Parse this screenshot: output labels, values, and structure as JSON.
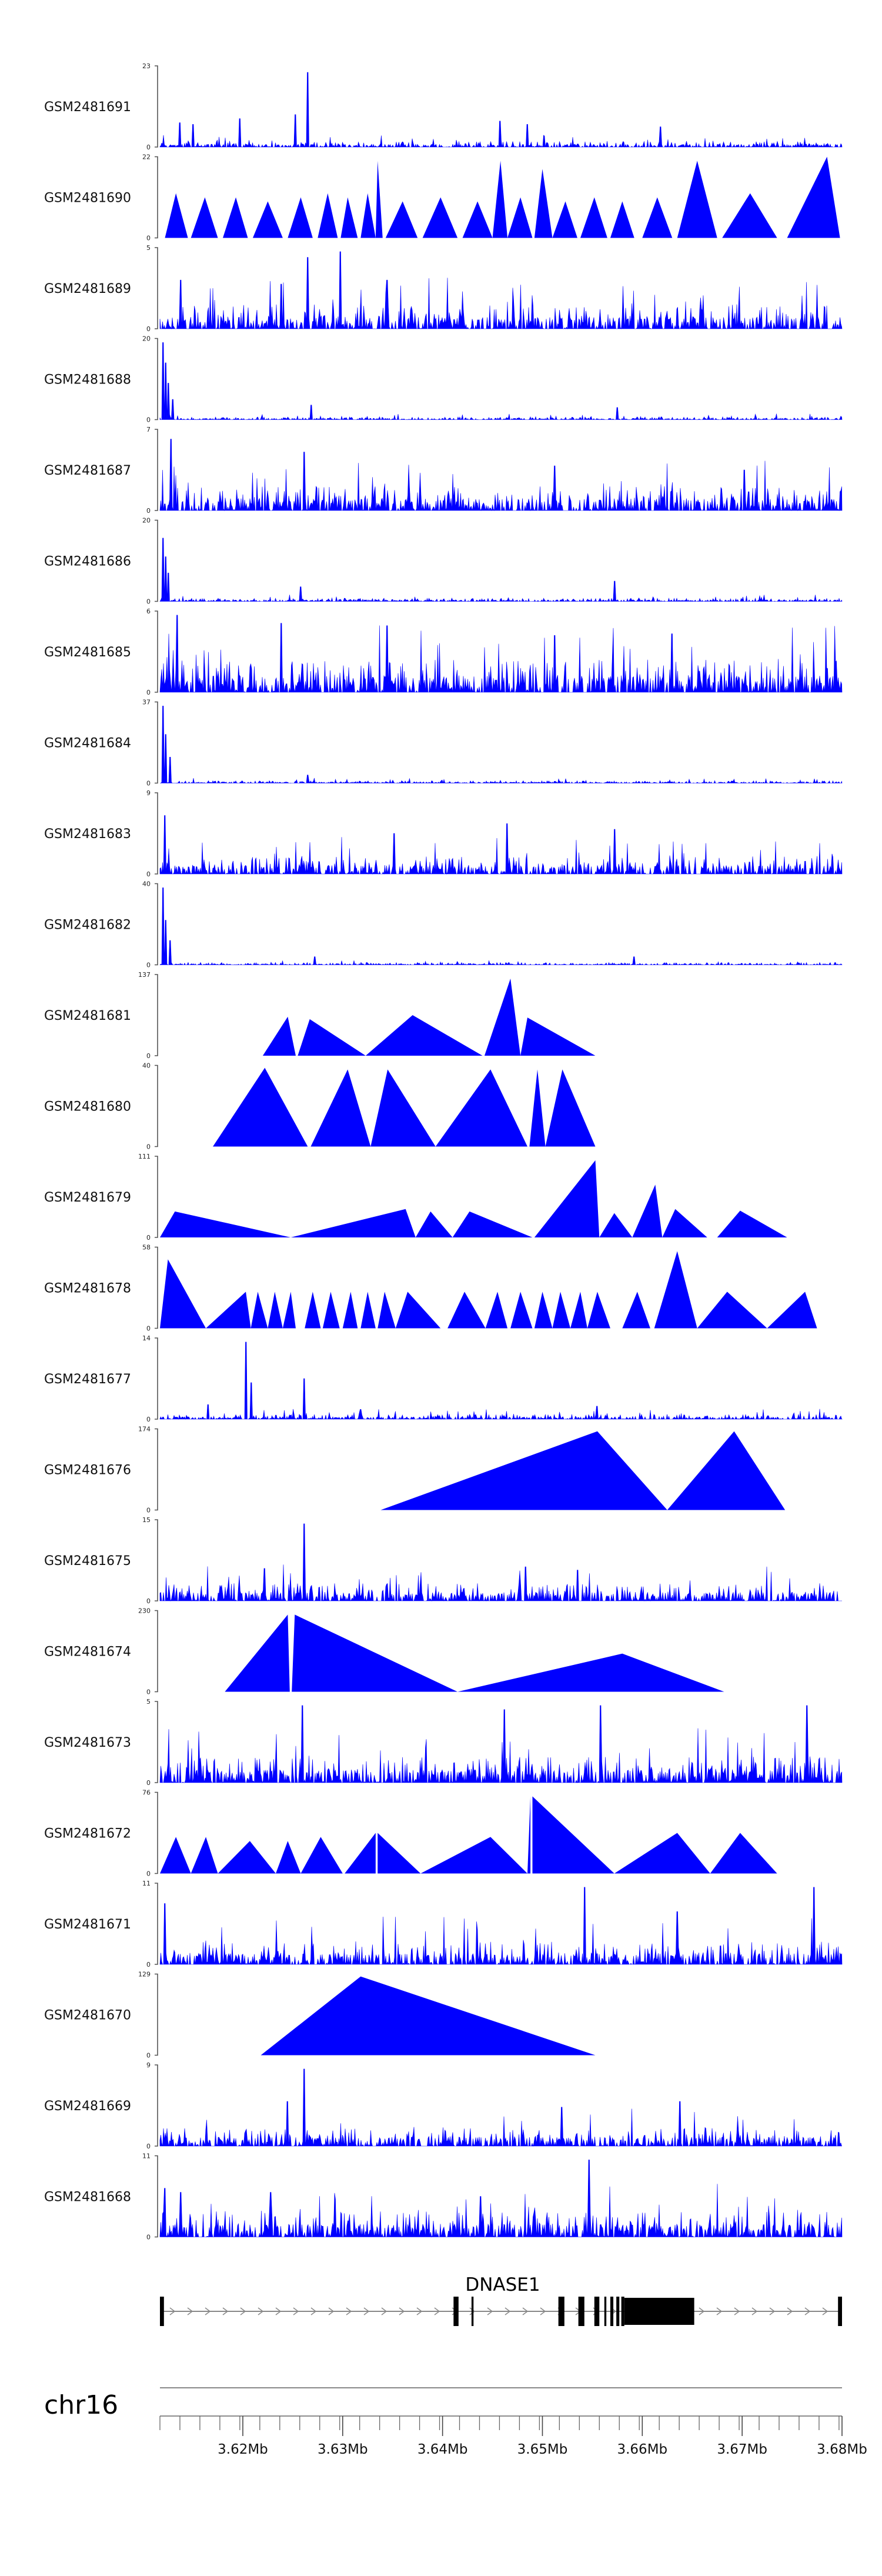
{
  "chart_data": {
    "type": "area",
    "title": "",
    "xlabel": "",
    "ylabel": "",
    "color": "#0000ff",
    "chromosome": "chr16",
    "x_range": [
      3.6117,
      3.68
    ],
    "x_unit": "Mb",
    "x_ticks": [
      {
        "value": 3.62,
        "label": "3.62Mb"
      },
      {
        "value": 3.63,
        "label": "3.63Mb"
      },
      {
        "value": 3.64,
        "label": "3.64Mb"
      },
      {
        "value": 3.65,
        "label": "3.65Mb"
      },
      {
        "value": 3.66,
        "label": "3.66Mb"
      },
      {
        "value": 3.67,
        "label": "3.67Mb"
      },
      {
        "value": 3.68,
        "label": "3.68Mb"
      }
    ],
    "minor_tick_step": 0.002,
    "tracks": [
      {
        "name": "GSM2481691",
        "ymin": "0",
        "ymax": 23,
        "style": "dense",
        "seed": 101,
        "base": 0.07,
        "spikes": [
          [
            3.6265,
            0.92
          ],
          [
            3.6137,
            0.3
          ],
          [
            3.615,
            0.28
          ],
          [
            3.6197,
            0.35
          ],
          [
            3.6253,
            0.4
          ],
          [
            3.6458,
            0.32
          ],
          [
            3.6485,
            0.28
          ],
          [
            3.6618,
            0.25
          ]
        ]
      },
      {
        "name": "GSM2481690",
        "ymin": "0",
        "ymax": 22,
        "style": "tri",
        "seed": 102,
        "peaks": [
          [
            3.6122,
            3.6133,
            3.6145,
            0.55
          ],
          [
            3.6148,
            3.6162,
            3.6175,
            0.5
          ],
          [
            3.618,
            3.6193,
            3.6205,
            0.5
          ],
          [
            3.621,
            3.6225,
            3.624,
            0.45
          ],
          [
            3.6245,
            3.6258,
            3.627,
            0.5
          ],
          [
            3.6275,
            3.6285,
            3.6295,
            0.55
          ],
          [
            3.6298,
            3.6305,
            3.6315,
            0.5
          ],
          [
            3.6318,
            3.6325,
            3.6333,
            0.55
          ],
          [
            3.6333,
            3.6335,
            3.634,
            0.95
          ],
          [
            3.6343,
            3.636,
            3.6375,
            0.45
          ],
          [
            3.638,
            3.6398,
            3.6415,
            0.5
          ],
          [
            3.642,
            3.6435,
            3.645,
            0.45
          ],
          [
            3.645,
            3.6458,
            3.6465,
            0.95
          ],
          [
            3.6465,
            3.6478,
            3.649,
            0.5
          ],
          [
            3.6492,
            3.65,
            3.651,
            0.85
          ],
          [
            3.651,
            3.6523,
            3.6535,
            0.45
          ],
          [
            3.6538,
            3.6552,
            3.6565,
            0.5
          ],
          [
            3.6568,
            3.658,
            3.6592,
            0.45
          ],
          [
            3.66,
            3.6615,
            3.663,
            0.5
          ],
          [
            3.6635,
            3.6655,
            3.6675,
            0.95
          ],
          [
            3.668,
            3.6708,
            3.6735,
            0.55
          ],
          [
            3.6745,
            3.6785,
            3.6798,
            1.0
          ]
        ]
      },
      {
        "name": "GSM2481689",
        "ymin": "0",
        "ymax": 5,
        "style": "dense",
        "seed": 103,
        "base": 0.3,
        "spikes": [
          [
            3.6265,
            0.88
          ],
          [
            3.6298,
            0.95
          ],
          [
            3.6345,
            0.6
          ],
          [
            3.6238,
            0.55
          ],
          [
            3.6138,
            0.6
          ]
        ]
      },
      {
        "name": "GSM2481688",
        "ymin": "0",
        "ymax": 20,
        "style": "dense",
        "seed": 104,
        "base": 0.035,
        "spikes": [
          [
            3.612,
            0.95
          ],
          [
            3.6123,
            0.7
          ],
          [
            3.6126,
            0.45
          ],
          [
            3.613,
            0.25
          ],
          [
            3.6269,
            0.18
          ],
          [
            3.6575,
            0.15
          ]
        ]
      },
      {
        "name": "GSM2481687",
        "ymin": "0",
        "ymax": 7,
        "style": "dense",
        "seed": 105,
        "base": 0.3,
        "spikes": [
          [
            3.6128,
            0.88
          ],
          [
            3.6262,
            0.72
          ],
          [
            3.6512,
            0.55
          ],
          [
            3.6702,
            0.5
          ]
        ]
      },
      {
        "name": "GSM2481686",
        "ymin": "0",
        "ymax": 20,
        "style": "dense",
        "seed": 106,
        "base": 0.04,
        "spikes": [
          [
            3.612,
            0.78
          ],
          [
            3.6123,
            0.55
          ],
          [
            3.6126,
            0.35
          ],
          [
            3.6258,
            0.18
          ],
          [
            3.6572,
            0.25
          ]
        ]
      },
      {
        "name": "GSM2481685",
        "ymin": "0",
        "ymax": 6,
        "style": "dense",
        "seed": 107,
        "base": 0.4,
        "spikes": [
          [
            3.6134,
            0.95
          ],
          [
            3.6238,
            0.85
          ],
          [
            3.6344,
            0.82
          ],
          [
            3.6512,
            0.7
          ],
          [
            3.663,
            0.72
          ]
        ]
      },
      {
        "name": "GSM2481684",
        "ymin": "0",
        "ymax": 37,
        "style": "dense",
        "seed": 108,
        "base": 0.03,
        "spikes": [
          [
            3.612,
            0.95
          ],
          [
            3.6123,
            0.6
          ],
          [
            3.6127,
            0.32
          ],
          [
            3.6265,
            0.1
          ]
        ]
      },
      {
        "name": "GSM2481683",
        "ymin": "0",
        "ymax": 9,
        "style": "dense",
        "seed": 109,
        "base": 0.22,
        "spikes": [
          [
            3.6122,
            0.72
          ],
          [
            3.6352,
            0.5
          ],
          [
            3.6465,
            0.62
          ],
          [
            3.6572,
            0.55
          ]
        ]
      },
      {
        "name": "GSM2481682",
        "ymin": "0",
        "ymax": 40,
        "style": "dense",
        "seed": 110,
        "base": 0.03,
        "spikes": [
          [
            3.612,
            0.95
          ],
          [
            3.6123,
            0.55
          ],
          [
            3.6127,
            0.3
          ],
          [
            3.6272,
            0.1
          ],
          [
            3.6592,
            0.1
          ]
        ]
      },
      {
        "name": "GSM2481681",
        "ymin": "0",
        "ymax": 137,
        "style": "tri",
        "seed": 111,
        "peaks": [
          [
            3.622,
            3.6245,
            3.6253,
            0.48
          ],
          [
            3.6255,
            3.6267,
            3.6323,
            0.45
          ],
          [
            3.6323,
            3.637,
            3.644,
            0.5
          ],
          [
            3.6442,
            3.6468,
            3.6478,
            0.95
          ],
          [
            3.6478,
            3.6485,
            3.6553,
            0.47
          ]
        ]
      },
      {
        "name": "GSM2481680",
        "ymin": "0",
        "ymax": 40,
        "style": "tri",
        "seed": 112,
        "peaks": [
          [
            3.617,
            3.6222,
            3.6265,
            0.97
          ],
          [
            3.6268,
            3.6305,
            3.6328,
            0.95
          ],
          [
            3.6328,
            3.6345,
            3.6393,
            0.95
          ],
          [
            3.6393,
            3.6448,
            3.6485,
            0.95
          ],
          [
            3.6487,
            3.6495,
            3.6503,
            0.95
          ],
          [
            3.6503,
            3.652,
            3.6553,
            0.95
          ]
        ]
      },
      {
        "name": "GSM2481679",
        "ymin": "0",
        "ymax": 111,
        "style": "tri",
        "seed": 113,
        "peaks": [
          [
            3.6117,
            3.6132,
            3.6248,
            0.32
          ],
          [
            3.6248,
            3.6363,
            3.6373,
            0.35
          ],
          [
            3.6373,
            3.6388,
            3.641,
            0.32
          ],
          [
            3.641,
            3.6427,
            3.649,
            0.32
          ],
          [
            3.6492,
            3.6553,
            3.6557,
            0.95
          ],
          [
            3.6557,
            3.6572,
            3.659,
            0.3
          ],
          [
            3.659,
            3.6613,
            3.662,
            0.65
          ],
          [
            3.662,
            3.6633,
            3.6665,
            0.35
          ],
          [
            3.6675,
            3.6698,
            3.6745,
            0.33
          ]
        ]
      },
      {
        "name": "GSM2481678",
        "ymin": "0",
        "ymax": 58,
        "style": "tri",
        "seed": 114,
        "peaks": [
          [
            3.6117,
            3.6125,
            3.6163,
            0.85
          ],
          [
            3.6163,
            3.6203,
            3.6208,
            0.45
          ],
          [
            3.6208,
            3.6215,
            3.6225,
            0.45
          ],
          [
            3.6225,
            3.6232,
            3.624,
            0.45
          ],
          [
            3.624,
            3.6248,
            3.6253,
            0.45
          ],
          [
            3.6262,
            3.627,
            3.6278,
            0.45
          ],
          [
            3.628,
            3.6288,
            3.6297,
            0.45
          ],
          [
            3.63,
            3.6308,
            3.6315,
            0.45
          ],
          [
            3.6318,
            3.6325,
            3.6333,
            0.45
          ],
          [
            3.6335,
            3.6342,
            3.6353,
            0.45
          ],
          [
            3.6353,
            3.6365,
            3.6398,
            0.45
          ],
          [
            3.6405,
            3.6422,
            3.6443,
            0.45
          ],
          [
            3.6443,
            3.6455,
            3.6465,
            0.45
          ],
          [
            3.6468,
            3.6478,
            3.649,
            0.45
          ],
          [
            3.6492,
            3.65,
            3.651,
            0.45
          ],
          [
            3.651,
            3.6518,
            3.6528,
            0.45
          ],
          [
            3.6528,
            3.6538,
            3.6545,
            0.45
          ],
          [
            3.6545,
            3.6555,
            3.6568,
            0.45
          ],
          [
            3.658,
            3.6595,
            3.6608,
            0.45
          ],
          [
            3.6612,
            3.6635,
            3.6655,
            0.95
          ],
          [
            3.6655,
            3.6685,
            3.6725,
            0.45
          ],
          [
            3.6725,
            3.6763,
            3.6775,
            0.45
          ]
        ]
      },
      {
        "name": "GSM2481677",
        "ymin": "0",
        "ymax": 14,
        "style": "dense",
        "seed": 115,
        "base": 0.06,
        "spikes": [
          [
            3.6203,
            0.95
          ],
          [
            3.6208,
            0.45
          ],
          [
            3.6262,
            0.5
          ],
          [
            3.6165,
            0.18
          ],
          [
            3.6318,
            0.12
          ],
          [
            3.6555,
            0.16
          ]
        ]
      },
      {
        "name": "GSM2481676",
        "ymin": "0",
        "ymax": 174,
        "style": "tri",
        "seed": 116,
        "peaks": [
          [
            3.6338,
            3.6555,
            3.6625,
            0.97
          ],
          [
            3.6625,
            3.6692,
            3.6743,
            0.97
          ]
        ]
      },
      {
        "name": "GSM2481675",
        "ymin": "0",
        "ymax": 15,
        "style": "dense",
        "seed": 117,
        "base": 0.22,
        "spikes": [
          [
            3.6262,
            0.95
          ],
          [
            3.6222,
            0.4
          ],
          [
            3.6483,
            0.42
          ],
          [
            3.6535,
            0.38
          ]
        ]
      },
      {
        "name": "GSM2481674",
        "ymin": "0",
        "ymax": 230,
        "style": "tri",
        "seed": 118,
        "peaks": [
          [
            3.6182,
            3.6245,
            3.6247,
            0.95
          ],
          [
            3.6249,
            3.6252,
            3.6415,
            0.95
          ],
          [
            3.6415,
            3.658,
            3.6682,
            0.47
          ]
        ]
      },
      {
        "name": "GSM2481673",
        "ymin": "0",
        "ymax": 5,
        "style": "dense",
        "seed": 119,
        "base": 0.32,
        "spikes": [
          [
            3.626,
            0.95
          ],
          [
            3.6462,
            0.9
          ],
          [
            3.6558,
            0.95
          ],
          [
            3.6765,
            0.95
          ]
        ]
      },
      {
        "name": "GSM2481672",
        "ymin": "0",
        "ymax": 76,
        "style": "tri",
        "seed": 120,
        "peaks": [
          [
            3.6117,
            3.6133,
            3.6148,
            0.45
          ],
          [
            3.6148,
            3.6163,
            3.6175,
            0.45
          ],
          [
            3.6175,
            3.6207,
            3.6233,
            0.4
          ],
          [
            3.6233,
            3.6245,
            3.6258,
            0.4
          ],
          [
            3.6258,
            3.6278,
            3.63,
            0.45
          ],
          [
            3.6302,
            3.6333,
            3.6333,
            0.5
          ],
          [
            3.6335,
            3.6335,
            3.6378,
            0.5
          ],
          [
            3.6378,
            3.6448,
            3.6485,
            0.45
          ],
          [
            3.6485,
            3.6488,
            3.6488,
            0.95
          ],
          [
            3.649,
            3.649,
            3.6572,
            0.95
          ],
          [
            3.6572,
            3.6635,
            3.6668,
            0.5
          ],
          [
            3.6668,
            3.6698,
            3.6735,
            0.5
          ]
        ]
      },
      {
        "name": "GSM2481671",
        "ymin": "0",
        "ymax": 11,
        "style": "dense",
        "seed": 121,
        "base": 0.28,
        "spikes": [
          [
            3.6542,
            0.95
          ],
          [
            3.6635,
            0.65
          ],
          [
            3.6772,
            0.95
          ],
          [
            3.6122,
            0.75
          ]
        ]
      },
      {
        "name": "GSM2481670",
        "ymin": "0",
        "ymax": 129,
        "style": "tri",
        "seed": 122,
        "peaks": [
          [
            3.6218,
            3.6318,
            3.6553,
            0.97
          ]
        ]
      },
      {
        "name": "GSM2481669",
        "ymin": "0",
        "ymax": 9,
        "style": "dense",
        "seed": 123,
        "base": 0.22,
        "spikes": [
          [
            3.6262,
            0.95
          ],
          [
            3.6245,
            0.55
          ],
          [
            3.6638,
            0.55
          ],
          [
            3.652,
            0.48
          ]
        ]
      },
      {
        "name": "GSM2481668",
        "ymin": "0",
        "ymax": 11,
        "style": "dense",
        "seed": 124,
        "base": 0.32,
        "spikes": [
          [
            3.6547,
            0.95
          ],
          [
            3.6122,
            0.6
          ],
          [
            3.6138,
            0.55
          ],
          [
            3.6228,
            0.55
          ],
          [
            3.6438,
            0.5
          ]
        ]
      }
    ],
    "gene": {
      "name": "DNASE1",
      "start": 3.6117,
      "end": 3.68,
      "strand": "+",
      "exons": [
        {
          "start": 3.6117,
          "end": 3.6121,
          "tall": true
        },
        {
          "start": 3.6411,
          "end": 3.6416,
          "tall": true
        },
        {
          "start": 3.6429,
          "end": 3.6431,
          "tall": true
        },
        {
          "start": 3.6516,
          "end": 3.6522,
          "tall": true
        },
        {
          "start": 3.6536,
          "end": 3.6542,
          "tall": true
        },
        {
          "start": 3.6552,
          "end": 3.6557,
          "tall": true
        },
        {
          "start": 3.6562,
          "end": 3.6564,
          "tall": true
        },
        {
          "start": 3.6568,
          "end": 3.6571,
          "tall": true
        },
        {
          "start": 3.6574,
          "end": 3.6577,
          "tall": true
        },
        {
          "start": 3.6579,
          "end": 3.6582,
          "tall": true
        },
        {
          "start": 3.6582,
          "end": 3.6652,
          "tall": false
        },
        {
          "start": 3.6796,
          "end": 3.68,
          "tall": true
        }
      ]
    }
  }
}
